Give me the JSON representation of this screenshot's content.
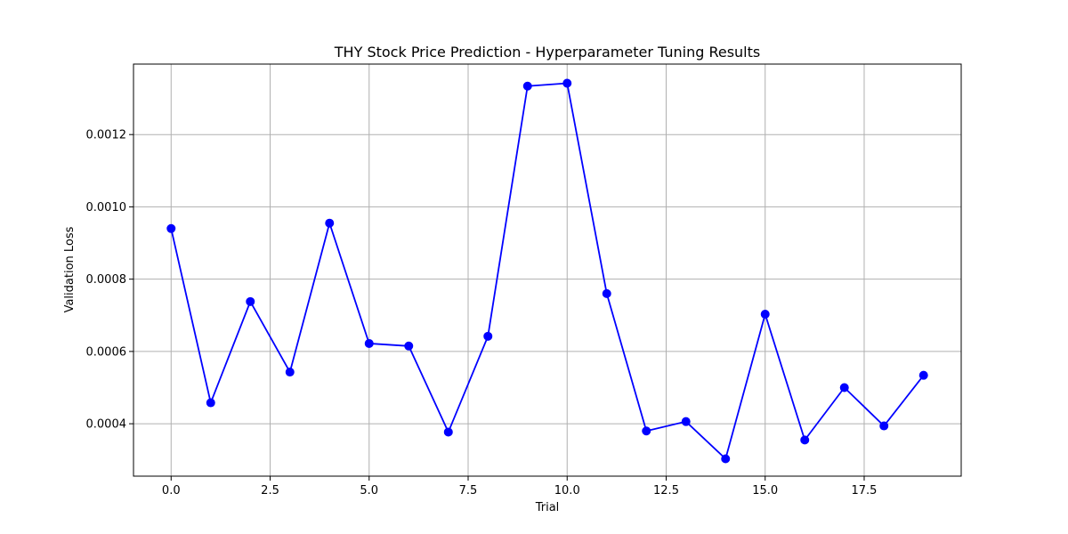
{
  "chart_data": {
    "type": "line",
    "title": "THY Stock Price Prediction - Hyperparameter Tuning Results",
    "xlabel": "Trial",
    "ylabel": "Validation Loss",
    "xlim": [
      -0.95,
      19.95
    ],
    "ylim": [
      0.000255,
      0.001395
    ],
    "x_ticks": [
      {
        "value": 0.0,
        "label": "0.0"
      },
      {
        "value": 2.5,
        "label": "2.5"
      },
      {
        "value": 5.0,
        "label": "5.0"
      },
      {
        "value": 7.5,
        "label": "7.5"
      },
      {
        "value": 10.0,
        "label": "10.0"
      },
      {
        "value": 12.5,
        "label": "12.5"
      },
      {
        "value": 15.0,
        "label": "15.0"
      },
      {
        "value": 17.5,
        "label": "17.5"
      }
    ],
    "y_ticks": [
      {
        "value": 0.0004,
        "label": "0.0004"
      },
      {
        "value": 0.0006,
        "label": "0.0006"
      },
      {
        "value": 0.0008,
        "label": "0.0008"
      },
      {
        "value": 0.001,
        "label": "0.0010"
      },
      {
        "value": 0.0012,
        "label": "0.0012"
      }
    ],
    "grid": true,
    "series": [
      {
        "color": "#0000ff",
        "marker": "circle",
        "x": [
          0,
          1,
          2,
          3,
          4,
          5,
          6,
          7,
          8,
          9,
          10,
          11,
          12,
          13,
          14,
          15,
          16,
          17,
          18,
          19
        ],
        "values": [
          0.00094,
          0.000458,
          0.000738,
          0.000543,
          0.000955,
          0.000622,
          0.000615,
          0.000377,
          0.000642,
          0.001334,
          0.001342,
          0.00076,
          0.00038,
          0.000406,
          0.000303,
          0.000703,
          0.000355,
          0.0005,
          0.000394,
          0.000534
        ]
      }
    ]
  }
}
